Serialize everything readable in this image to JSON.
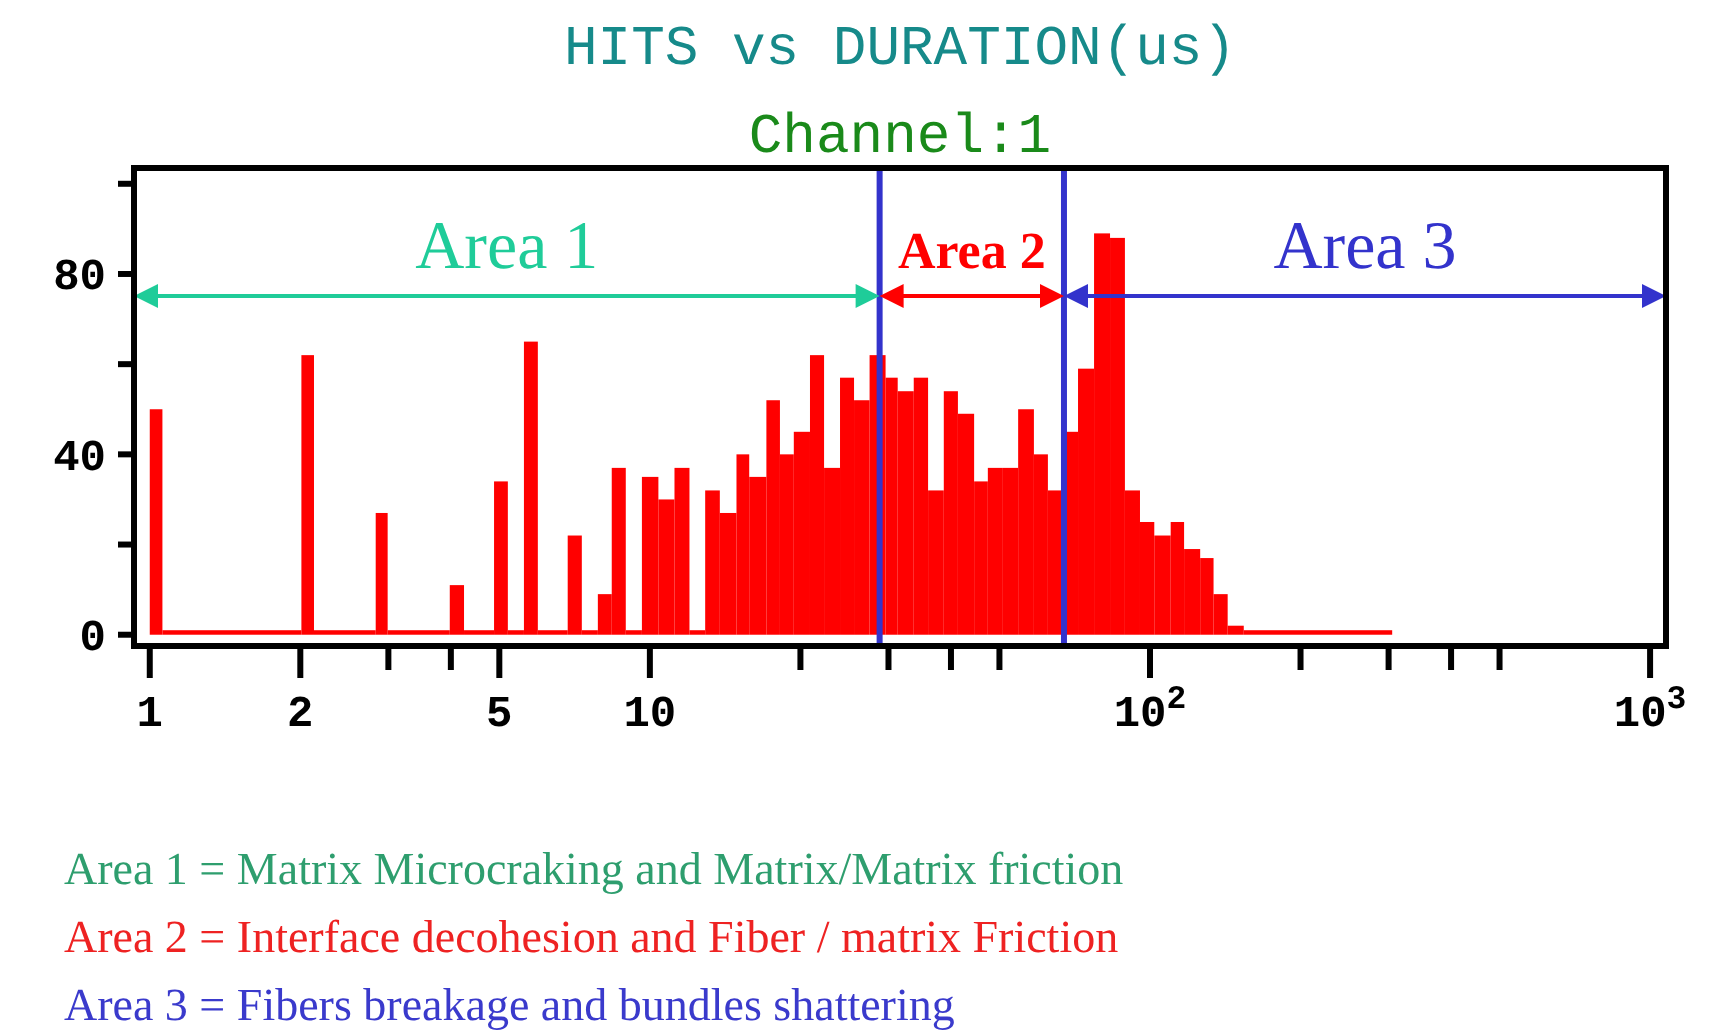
{
  "chart_data": {
    "type": "histogram",
    "title": "HITS vs DURATION(us)",
    "subtitle": "Channel:1",
    "log": "x",
    "bins": [
      1,
      1.06,
      2.01,
      2.13,
      2.83,
      2.99,
      3.98,
      4.25,
      4.88,
      5.2,
      5.6,
      5.97,
      6.85,
      7.31,
      7.87,
      8.39,
      8.95,
      9.64,
      10.4,
      11.2,
      12,
      12.9,
      13.8,
      14.9,
      15.8,
      17.1,
      18.2,
      19.4,
      20.9,
      22.3,
      24,
      25.6,
      27.5,
      29.6,
      31.3,
      33.7,
      36,
      38.7,
      41.3,
      44.5,
      47.4,
      50.8,
      54.5,
      58.6,
      62.5,
      67.3,
      71.8,
      77.3,
      83.2,
      89.1,
      95.5,
      102,
      110,
      117,
      126,
      134,
      143,
      154,
      305
    ],
    "values": [
      50,
      1,
      62,
      1,
      27,
      1,
      11,
      1,
      34,
      1,
      65,
      1,
      22,
      1,
      9,
      37,
      1,
      35,
      30,
      37,
      1,
      32,
      27,
      40,
      35,
      52,
      40,
      45,
      62,
      37,
      57,
      52,
      62,
      57,
      54,
      57,
      32,
      54,
      49,
      34,
      37,
      37,
      50,
      40,
      32,
      45,
      59,
      89,
      88,
      32,
      25,
      22,
      25,
      19,
      17,
      9,
      2,
      1
    ],
    "xlim": [
      0.93,
      1076
    ],
    "ylim": [
      -2.5,
      103.5
    ],
    "xticks": [
      1,
      2,
      {
        "value": 3,
        "label": null
      },
      {
        "value": 4,
        "label": null
      },
      5,
      10,
      {
        "value": 20,
        "label": null
      },
      {
        "value": 30,
        "label": null
      },
      {
        "value": 40,
        "label": null
      },
      {
        "value": 50,
        "label": null
      },
      {
        "value": 100,
        "label": "10$^{2}$"
      },
      {
        "value": 200,
        "label": null
      },
      {
        "value": 300,
        "label": null
      },
      {
        "value": 400,
        "label": null
      },
      {
        "value": 500,
        "label": null
      },
      {
        "value": 1000,
        "label": "10$^{3}$"
      }
    ],
    "yticks": [
      0,
      {
        "value": 20,
        "label": null
      },
      40,
      {
        "value": 60,
        "label": null
      },
      80,
      {
        "value": 100,
        "label": null
      }
    ],
    "ref_lines": [
      {
        "axis": "x",
        "value": 28.8,
        "color": "#3333cc"
      },
      {
        "axis": "x",
        "value": 67.3,
        "color": "#3333cc"
      }
    ],
    "annotations": [
      "Area 1",
      "Area 2",
      "Area 3",
      "Area  1 = Matrix Microcraking and Matrix/Matrix friction",
      "Area  2 = Interface decohesion and Fiber / matrix Friction",
      "Area  3 = Fibers breakage and bundles shattering"
    ],
    "color": "#ff0000"
  }
}
